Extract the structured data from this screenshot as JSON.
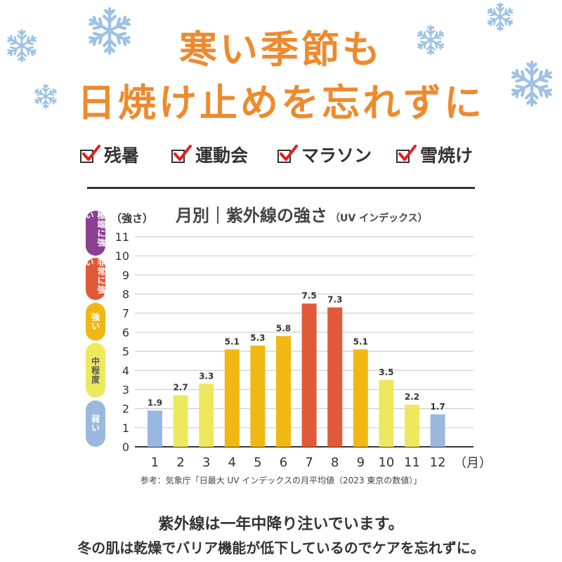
{
  "headline": {
    "line1": "寒い季節も",
    "line2": "日焼け止めを忘れずに"
  },
  "tags": [
    {
      "label": "残暑"
    },
    {
      "label": "運動会"
    },
    {
      "label": "マラソン"
    },
    {
      "label": "雪焼け"
    }
  ],
  "legend_pills": [
    {
      "label": "極端に強い",
      "color": "#8c3f93"
    },
    {
      "label": "非常に強い",
      "color": "#e05a3a"
    },
    {
      "label": "強い",
      "color": "#f1b814"
    },
    {
      "label": "中程度",
      "color": "#eee85e"
    },
    {
      "label": "弱い",
      "color": "#9ab8de"
    }
  ],
  "chart_data": {
    "type": "bar",
    "title": "月別｜紫外線の強さ",
    "subtitle": "（UV インデックス）",
    "ylabel": "（強さ）",
    "xlabel": "（月）",
    "categories": [
      "1",
      "2",
      "3",
      "4",
      "5",
      "6",
      "7",
      "8",
      "9",
      "10",
      "11",
      "12"
    ],
    "values": [
      1.9,
      2.7,
      3.3,
      5.1,
      5.3,
      5.8,
      7.5,
      7.3,
      5.1,
      3.5,
      2.2,
      1.7
    ],
    "data_labels": [
      "1.9",
      "2.7",
      "3.3",
      "5.1",
      "5.3",
      "5.8",
      "7.5",
      "7.3",
      "5.1",
      "3.5",
      "2.2",
      "1.7"
    ],
    "bar_colors": [
      "#9ab8de",
      "#eee85e",
      "#eee85e",
      "#f1b814",
      "#f1b814",
      "#f1b814",
      "#e05a3a",
      "#e05a3a",
      "#f1b814",
      "#eee85e",
      "#eee85e",
      "#9ab8de"
    ],
    "yticks": [
      "0",
      "1",
      "2",
      "3",
      "4",
      "5",
      "6",
      "7",
      "8",
      "9",
      "10",
      "11"
    ],
    "ylim": [
      0,
      11
    ],
    "grid": true,
    "source": "参考：気象庁「日最大 UV インデックスの月平均値（2023 東京の数値）」"
  },
  "footer": {
    "line1": "紫外線は一年中降り注いでいます。",
    "line2": "冬の肌は乾燥でバリア機能が低下しているのでケアを忘れずに。"
  },
  "colors": {
    "headline": "#ee8a2e",
    "snowflake": "#9ec2e4",
    "check": "#e02020"
  },
  "icons": [
    "snowflake-icon",
    "checkbox-icon"
  ]
}
